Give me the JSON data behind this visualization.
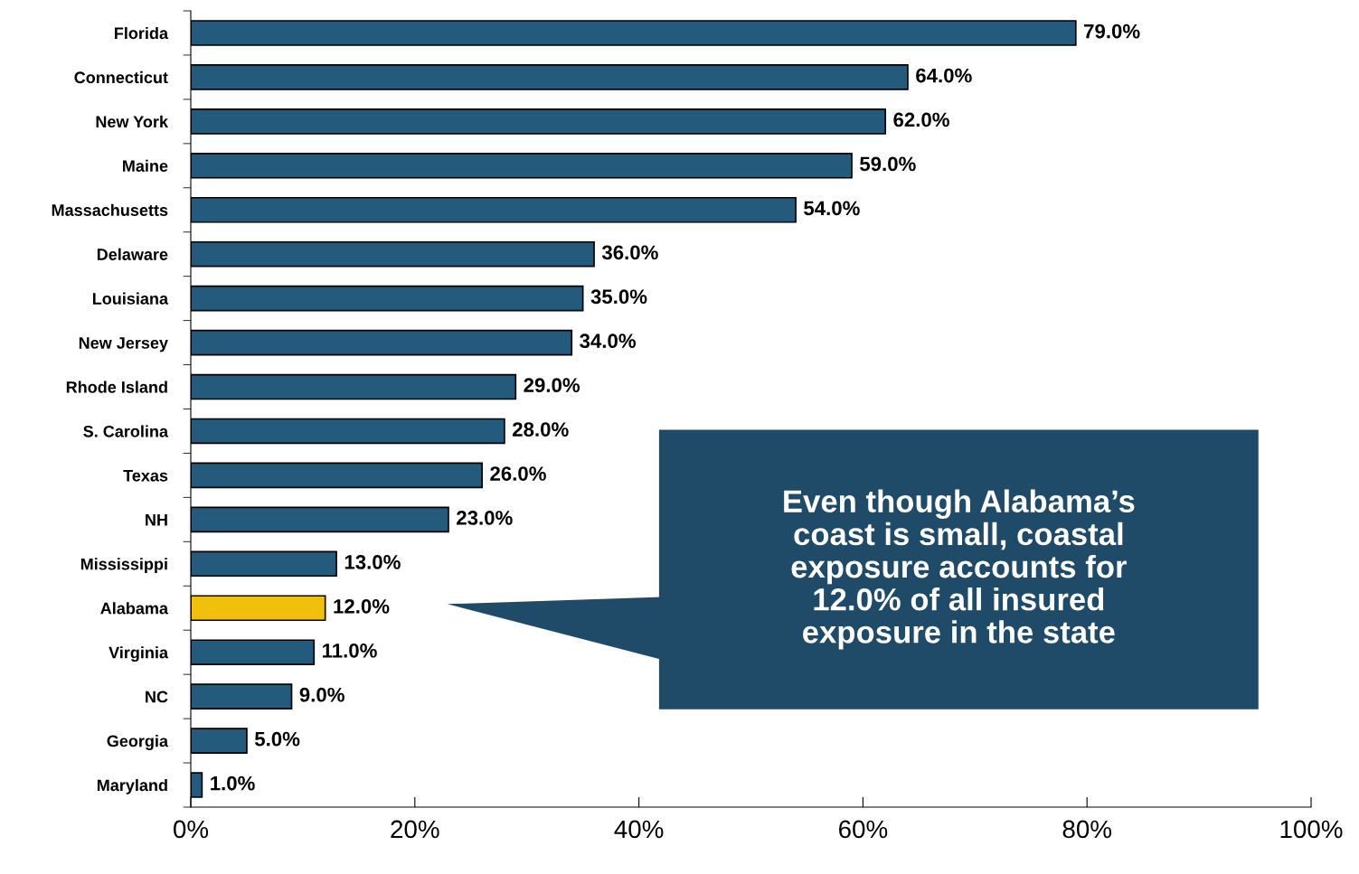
{
  "chart_data": {
    "type": "bar",
    "orientation": "horizontal",
    "categories": [
      "Florida",
      "Connecticut",
      "New York",
      "Maine",
      "Massachusetts",
      "Delaware",
      "Louisiana",
      "New Jersey",
      "Rhode Island",
      "S. Carolina",
      "Texas",
      "NH",
      "Mississippi",
      "Alabama",
      "Virginia",
      "NC",
      "Georgia",
      "Maryland"
    ],
    "values": [
      79.0,
      64.0,
      62.0,
      59.0,
      54.0,
      36.0,
      35.0,
      34.0,
      29.0,
      28.0,
      26.0,
      23.0,
      13.0,
      12.0,
      11.0,
      9.0,
      5.0,
      1.0
    ],
    "colors": [
      "#245a7c",
      "#245a7c",
      "#245a7c",
      "#245a7c",
      "#245a7c",
      "#245a7c",
      "#245a7c",
      "#245a7c",
      "#245a7c",
      "#245a7c",
      "#245a7c",
      "#245a7c",
      "#245a7c",
      "#f0c00c",
      "#245a7c",
      "#245a7c",
      "#245a7c",
      "#245a7c"
    ],
    "value_labels": [
      "79.0%",
      "64.0%",
      "62.0%",
      "59.0%",
      "54.0%",
      "36.0%",
      "35.0%",
      "34.0%",
      "29.0%",
      "28.0%",
      "26.0%",
      "23.0%",
      "13.0%",
      "12.0%",
      "11.0%",
      "9.0%",
      "5.0%",
      "1.0%"
    ],
    "xlim": [
      0,
      100
    ],
    "xticks": [
      {
        "value": 0,
        "label": "0%"
      },
      {
        "value": 20,
        "label": "20%"
      },
      {
        "value": 40,
        "label": "40%"
      },
      {
        "value": 60,
        "label": "60%"
      },
      {
        "value": 80,
        "label": "80%"
      },
      {
        "value": 100,
        "label": "100%"
      }
    ],
    "grid": false,
    "legend": false,
    "annotations": [
      "Even though Alabama’s\ncoast is small, coastal\nexposure accounts for\n12.0% of all insured\nexposure in the state"
    ]
  }
}
